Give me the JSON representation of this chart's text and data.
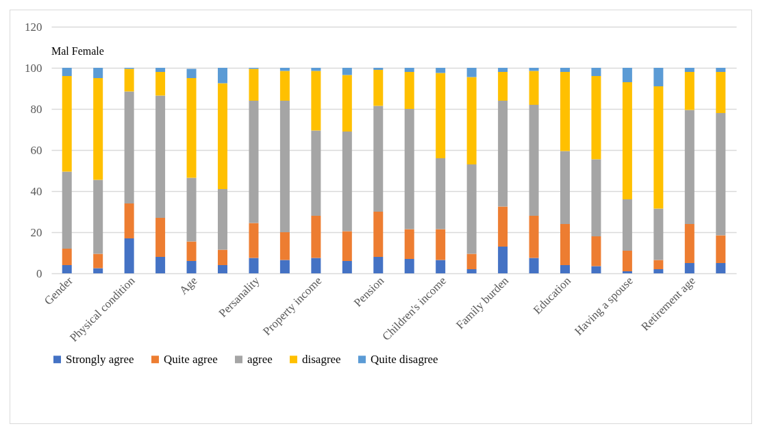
{
  "chart_data": {
    "type": "bar",
    "stacked": true,
    "categories": [
      "Gender",
      null,
      "Physical condition",
      null,
      "Age",
      null,
      "Persanality",
      null,
      "Property income",
      null,
      "Pension",
      null,
      "Children's income",
      null,
      "Family burden",
      null,
      "Education",
      null,
      "Having a spouse",
      null,
      "Retirement age",
      null
    ],
    "series": [
      {
        "name": "Strongly agree",
        "color": "#4472c4",
        "values": [
          4,
          2.5,
          17,
          8,
          6,
          4,
          7.5,
          6.5,
          7.5,
          6,
          8,
          7,
          6.5,
          2,
          13,
          7.5,
          4,
          3.5,
          1,
          2,
          5,
          5
        ]
      },
      {
        "name": "Quite agree",
        "color": "#ed7d31",
        "values": [
          8,
          7,
          17,
          19,
          9.5,
          7.5,
          17,
          13.5,
          20.5,
          14.5,
          22,
          14.5,
          15,
          7.5,
          19.5,
          20.5,
          20,
          14.5,
          10,
          4.5,
          19,
          13.5
        ]
      },
      {
        "name": "agree",
        "color": "#a5a5a5",
        "values": [
          37.5,
          36,
          54.5,
          59.5,
          31,
          29.5,
          59.5,
          64,
          41.5,
          48.5,
          51.5,
          58.5,
          34.5,
          43.5,
          51.5,
          54,
          35.5,
          37.5,
          25,
          25,
          55.5,
          59.5
        ]
      },
      {
        "name": "disagree",
        "color": "#ffc000",
        "values": [
          46.5,
          49.5,
          11,
          11.5,
          48.5,
          51.5,
          15.5,
          14.5,
          29,
          27.5,
          17.5,
          18,
          41.5,
          42.5,
          14,
          16.5,
          38.5,
          40.5,
          57,
          59.5,
          18.5,
          20
        ]
      },
      {
        "name": "Quite disagree",
        "color": "#5b9bd5",
        "values": [
          4,
          5,
          0.5,
          2,
          4.5,
          7.5,
          0.5,
          1.5,
          1.5,
          3.5,
          1,
          2,
          2.5,
          4.5,
          2,
          1.5,
          2,
          4,
          7,
          9,
          2,
          2
        ]
      }
    ],
    "ylim": [
      0,
      120
    ],
    "yticks": [
      0,
      20,
      40,
      60,
      80,
      100,
      120
    ],
    "grid": "y",
    "legend": "bottom",
    "annotations": [
      "Mal Female"
    ]
  }
}
